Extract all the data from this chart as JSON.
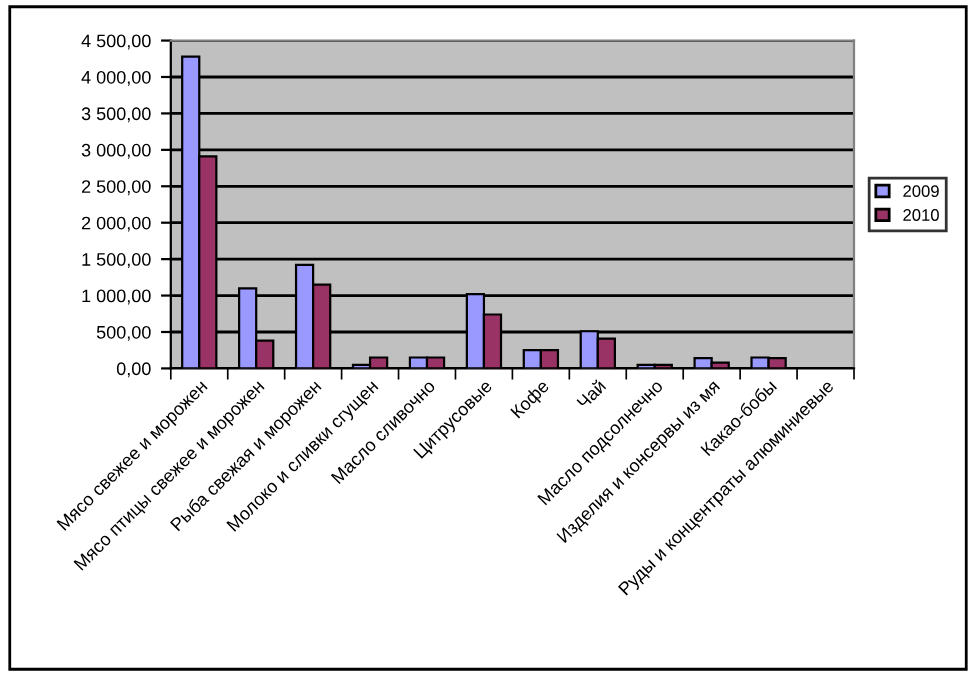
{
  "chart_data": {
    "type": "bar",
    "categories": [
      "Мясо свежее и морожен",
      "Мясо птицы свежее и морожен",
      "Рыба свежая и морожен",
      "Молоко и сливки сгущен",
      "Масло сливочно",
      "Цитрусовые",
      "Кофе",
      "Чай",
      "Масло подсолнечно",
      "Изделия и консервы из мя",
      "Какао-бобы",
      "Руды и концентраты алюминиевые"
    ],
    "series": [
      {
        "name": "2009",
        "color": "#9999ff",
        "values": [
          4280,
          1100,
          1420,
          50,
          150,
          1020,
          250,
          510,
          50,
          140,
          150,
          null
        ]
      },
      {
        "name": "2010",
        "color": "#993366",
        "values": [
          2910,
          380,
          1150,
          150,
          150,
          740,
          250,
          410,
          50,
          80,
          140,
          null
        ]
      }
    ],
    "ylim": [
      0,
      4500
    ],
    "yticks": [
      {
        "value": 0,
        "label": "0,00"
      },
      {
        "value": 500,
        "label": "500,00"
      },
      {
        "value": 1000,
        "label": "1 000,00"
      },
      {
        "value": 1500,
        "label": "1 500,00"
      },
      {
        "value": 2000,
        "label": "2 000,00"
      },
      {
        "value": 2500,
        "label": "2 500,00"
      },
      {
        "value": 3000,
        "label": "3 000,00"
      },
      {
        "value": 3500,
        "label": "3 500,00"
      },
      {
        "value": 4000,
        "label": "4 000,00"
      },
      {
        "value": 4500,
        "label": "4 500,00"
      }
    ],
    "grid": "y",
    "legend": "right"
  }
}
